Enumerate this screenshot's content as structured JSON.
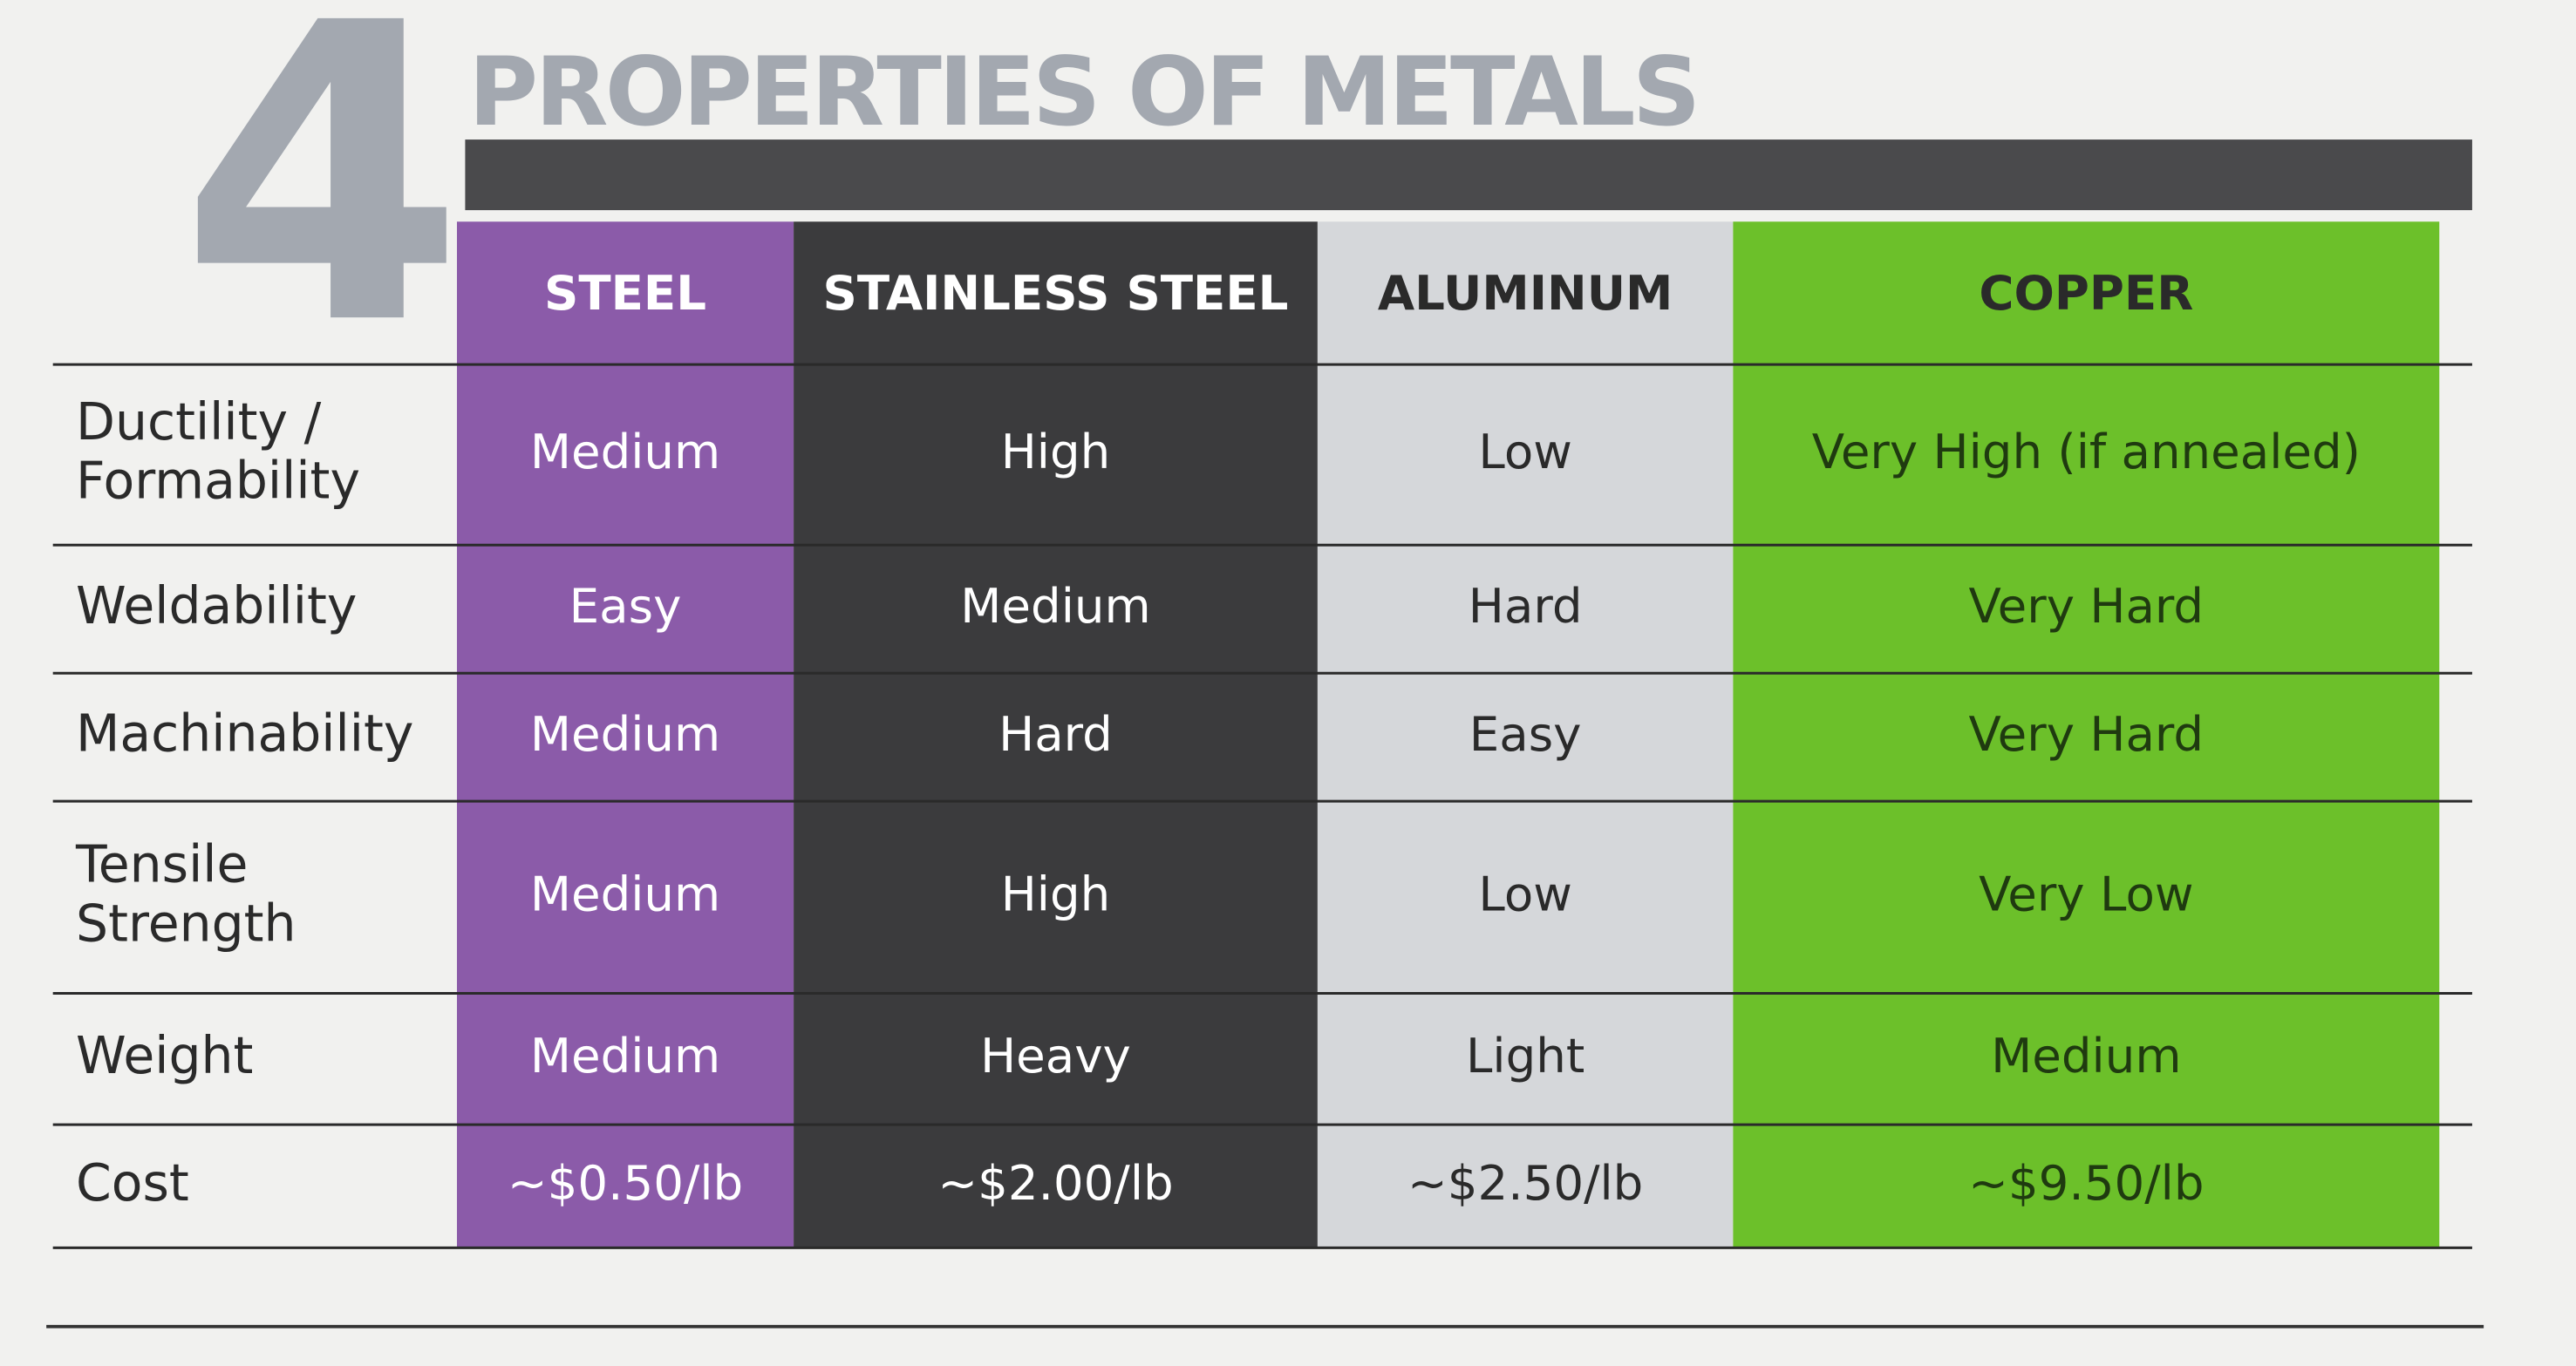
{
  "header": {
    "number": "4",
    "title": "PROPERTIES OF METALS"
  },
  "table": {
    "columns": [
      "STEEL",
      "STAINLESS STEEL",
      "ALUMINUM",
      "COPPER"
    ],
    "rows": [
      {
        "label": [
          "Ductility /",
          "Formability"
        ],
        "cells": [
          "Medium",
          "High",
          "Low",
          "Very High (if annealed)"
        ]
      },
      {
        "label": [
          "Weldability"
        ],
        "cells": [
          "Easy",
          "Medium",
          "Hard",
          "Very Hard"
        ]
      },
      {
        "label": [
          "Machinability"
        ],
        "cells": [
          "Medium",
          "Hard",
          "Easy",
          "Very Hard"
        ]
      },
      {
        "label": [
          "Tensile",
          "Strength"
        ],
        "cells": [
          "Medium",
          "High",
          "Low",
          "Very Low"
        ]
      },
      {
        "label": [
          "Weight"
        ],
        "cells": [
          "Medium",
          "Heavy",
          "Light",
          "Medium"
        ]
      },
      {
        "label": [
          "Cost"
        ],
        "cells": [
          "~$0.50/lb",
          "~$2.00/lb",
          "~$2.50/lb",
          "~$9.50/lb"
        ]
      }
    ]
  }
}
